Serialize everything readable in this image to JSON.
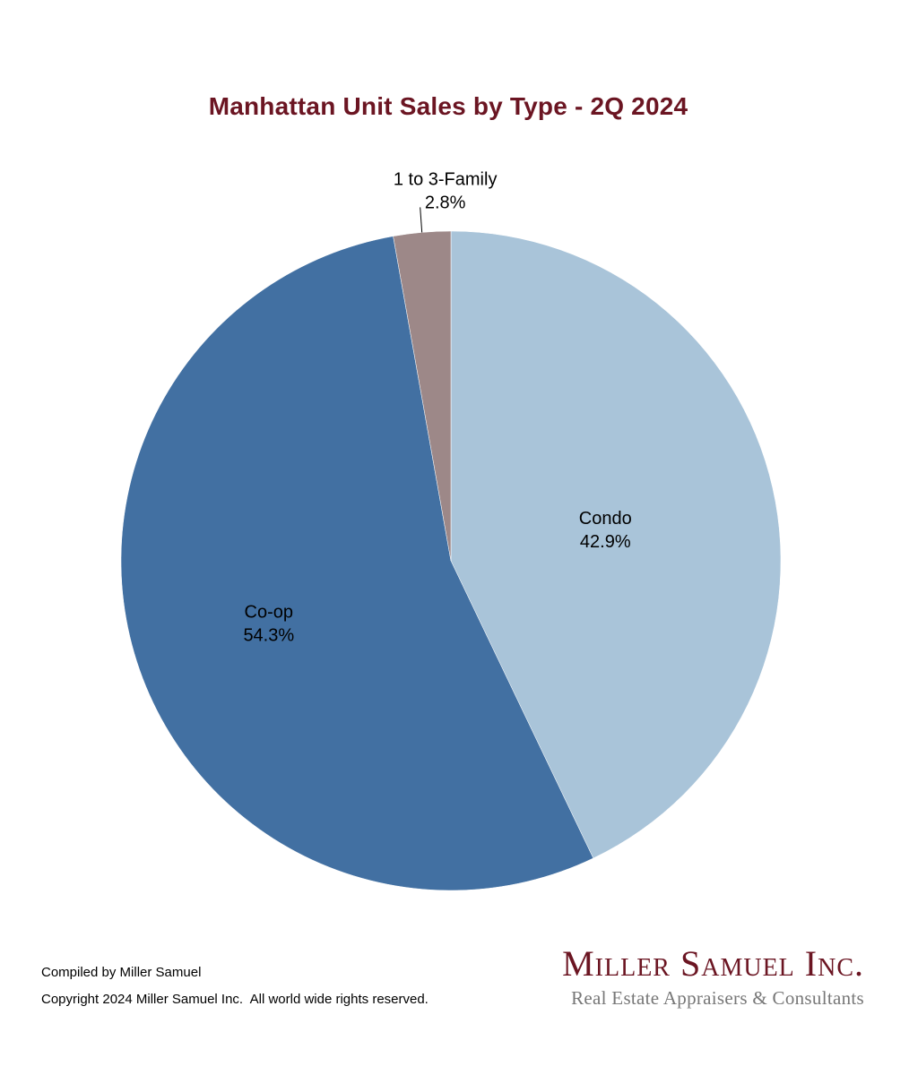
{
  "chart_data": {
    "type": "pie",
    "title": "Manhattan Unit Sales by Type - 2Q 2024",
    "slices": [
      {
        "label": "Condo",
        "value_label": "42.9%",
        "value": 42.9,
        "color": "#a9c4d9"
      },
      {
        "label": "Co-op",
        "value_label": "54.3%",
        "value": 54.3,
        "color": "#4270a2"
      },
      {
        "label": "1 to 3-Family",
        "value_label": "2.8%",
        "value": 2.8,
        "color": "#9d8888"
      }
    ],
    "start_angle": "12 o'clock",
    "direction": "clockwise",
    "legend": "none"
  },
  "footer": {
    "compiled": "Compiled by Miller Samuel",
    "copyright": "Copyright 2024 Miller Samuel Inc.  All world wide rights reserved."
  },
  "brand": {
    "name": "Miller Samuel Inc.",
    "tagline": "Real Estate Appraisers & Consultants"
  }
}
